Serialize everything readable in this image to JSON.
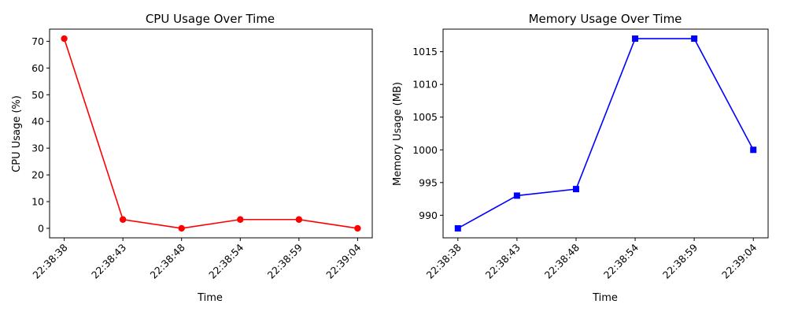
{
  "chart_data": [
    {
      "type": "line",
      "title": "CPU Usage Over Time",
      "xlabel": "Time",
      "ylabel": "CPU Usage (%)",
      "categories": [
        "22:38:38",
        "22:38:43",
        "22:38:48",
        "22:38:54",
        "22:38:59",
        "22:39:04"
      ],
      "ylim": [
        -3.55,
        74.55
      ],
      "yticks": [
        0,
        10,
        20,
        30,
        40,
        50,
        60,
        70
      ],
      "series": [
        {
          "values": [
            71.0,
            3.3,
            0.0,
            3.3,
            3.3,
            0.0
          ],
          "color": "#ff0000",
          "marker": "circle"
        }
      ]
    },
    {
      "type": "line",
      "title": "Memory Usage Over Time",
      "xlabel": "Time",
      "ylabel": "Memory Usage (MB)",
      "categories": [
        "22:38:38",
        "22:38:43",
        "22:38:48",
        "22:38:54",
        "22:38:59",
        "22:39:04"
      ],
      "ylim": [
        986.55,
        1018.45
      ],
      "yticks": [
        990,
        995,
        1000,
        1005,
        1010,
        1015
      ],
      "series": [
        {
          "values": [
            988,
            993,
            994,
            1017,
            1017,
            1000
          ],
          "color": "#0000ff",
          "marker": "square"
        }
      ]
    }
  ]
}
